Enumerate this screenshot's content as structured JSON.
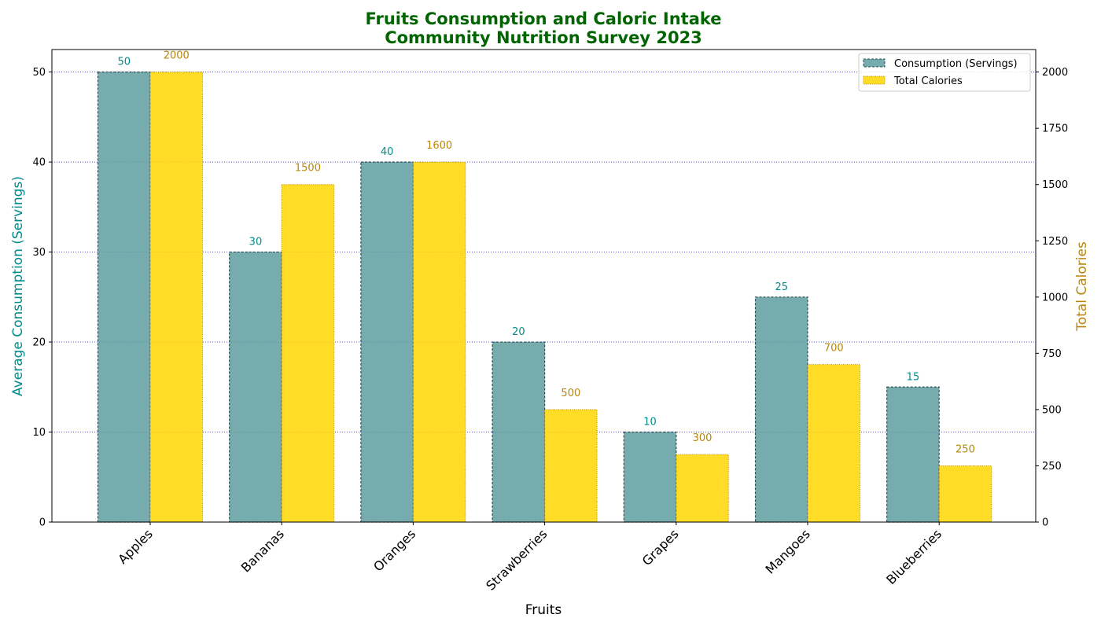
{
  "chart_data": {
    "type": "bar",
    "title": "Fruits Consumption and Caloric Intake",
    "subtitle": "Community Nutrition Survey 2023",
    "xlabel": "Fruits",
    "ylabel": "Average Consumption (Servings)",
    "y2label": "Total Calories",
    "categories": [
      "Apples",
      "Bananas",
      "Oranges",
      "Strawberries",
      "Grapes",
      "Mangoes",
      "Blueberries"
    ],
    "series": [
      {
        "name": "Consumption (Servings)",
        "axis": "left",
        "values": [
          50,
          30,
          40,
          20,
          10,
          25,
          15
        ],
        "color": "#5f9ea0"
      },
      {
        "name": "Total Calories",
        "axis": "right",
        "values": [
          2000,
          1500,
          1600,
          500,
          300,
          700,
          250
        ],
        "color": "#ffd700"
      }
    ],
    "ylim": [
      0,
      52.5
    ],
    "y2lim": [
      0,
      2100
    ],
    "yticks": [
      0,
      10,
      20,
      30,
      40,
      50
    ],
    "y2ticks": [
      0,
      250,
      500,
      750,
      1000,
      1250,
      1500,
      1750,
      2000
    ],
    "grid": "horizontal dotted",
    "legend_position": "top-right",
    "colors": {
      "title": "#006400",
      "left_axis_label": "#008b8b",
      "right_axis_label": "#b8860b",
      "grid": "#0000cd"
    }
  }
}
